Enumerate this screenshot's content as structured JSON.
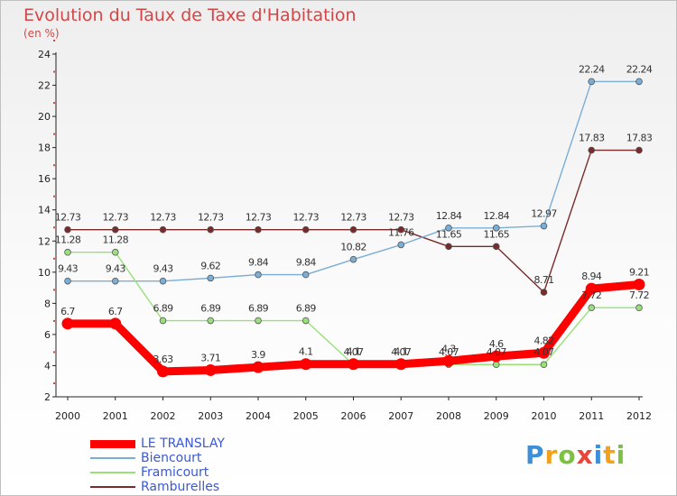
{
  "title": "Evolution du Taux de Taxe d'Habitation",
  "subtitle": "(en %)",
  "logo": "Proxiti",
  "chart_data": {
    "type": "line",
    "title": "Evolution du Taux de Taxe d'Habitation",
    "ylabel": "(en %)",
    "xlabel": "",
    "ylim": [
      2,
      24
    ],
    "yticks": [
      2,
      4,
      6,
      8,
      10,
      12,
      14,
      16,
      18,
      20,
      22,
      24
    ],
    "grid": false,
    "legend_position": "bottom-left",
    "x": [
      "2000",
      "2001",
      "2002",
      "2003",
      "2004",
      "2005",
      "2006",
      "2007",
      "2008",
      "2009",
      "2010",
      "2011",
      "2012"
    ],
    "series": [
      {
        "name": "LE TRANSLAY",
        "color": "#ff0000",
        "labels": [
          "6.7",
          "6.7",
          "3.63",
          "3.71",
          "3.9",
          "4.1",
          "4.1",
          "4.1",
          "4.3",
          "4.6",
          "4.82",
          "8.94",
          "9.21"
        ],
        "values": [
          6.7,
          6.7,
          3.63,
          3.71,
          3.9,
          4.1,
          4.1,
          4.1,
          4.3,
          4.6,
          4.82,
          8.94,
          9.21
        ]
      },
      {
        "name": "Biencourt",
        "color": "#7baed6",
        "labels": [
          "9.43",
          "9.43",
          "9.43",
          "9.62",
          "9.84",
          "9.84",
          "10.82",
          "11.76",
          "12.84",
          "12.84",
          "12.97",
          "22.24",
          "22.24"
        ],
        "values": [
          9.43,
          9.43,
          9.43,
          9.62,
          9.84,
          9.84,
          10.82,
          11.76,
          12.84,
          12.84,
          12.97,
          22.24,
          22.24
        ]
      },
      {
        "name": "Framicourt",
        "color": "#99e07a",
        "labels": [
          "11.28",
          "11.28",
          "6.89",
          "6.89",
          "6.89",
          "6.89",
          "4.07",
          "4.07",
          "4.07",
          "4.07",
          "4.07",
          "7.72",
          "7.72"
        ],
        "values": [
          11.28,
          11.28,
          6.89,
          6.89,
          6.89,
          6.89,
          4.07,
          4.07,
          4.07,
          4.07,
          4.07,
          7.72,
          7.72
        ]
      },
      {
        "name": "Ramburelles",
        "color": "#7a2a2a",
        "labels": [
          "12.73",
          "12.73",
          "12.73",
          "12.73",
          "12.73",
          "12.73",
          "12.73",
          "12.73",
          "11.65",
          "11.65",
          "8.71",
          "17.83",
          "17.83"
        ],
        "values": [
          12.73,
          12.73,
          12.73,
          12.73,
          12.73,
          12.73,
          12.73,
          12.73,
          11.65,
          11.65,
          8.71,
          17.83,
          17.83
        ]
      }
    ]
  }
}
